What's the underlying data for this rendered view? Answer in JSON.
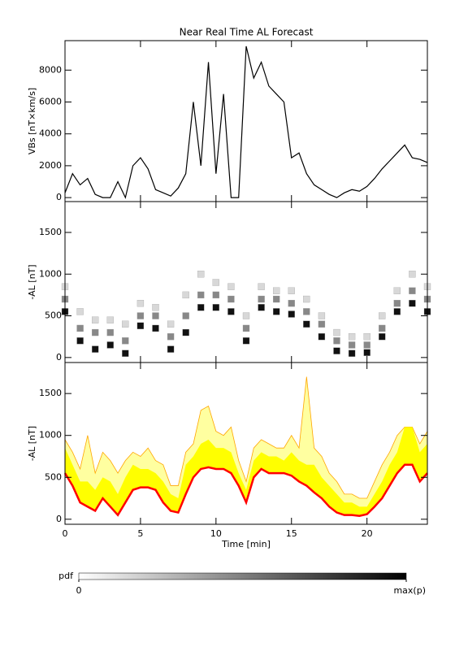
{
  "chart_data": [
    {
      "type": "line",
      "title": "Near Real Time AL Forecast",
      "ylabel": "VBs [nT×km/s]",
      "x": [
        0,
        0.5,
        1,
        1.5,
        2,
        2.5,
        3,
        3.5,
        4,
        4.5,
        5,
        5.5,
        6,
        6.5,
        7,
        7.5,
        8,
        8.5,
        9,
        9.5,
        10,
        10.5,
        11,
        11.5,
        12,
        12.5,
        13,
        13.5,
        14,
        14.5,
        15,
        15.5,
        16,
        16.5,
        17,
        17.5,
        18,
        18.5,
        19,
        19.5,
        20,
        20.5,
        21,
        21.5,
        22,
        22.5,
        23,
        23.5,
        24
      ],
      "series": [
        {
          "color": "#000000",
          "values": [
            300,
            1500,
            800,
            1200,
            200,
            0,
            0,
            1000,
            0,
            2000,
            2500,
            1800,
            500,
            300,
            100,
            600,
            1500,
            6000,
            2000,
            8500,
            1500,
            6500,
            0,
            0,
            9500,
            7500,
            8500,
            7000,
            6500,
            6000,
            2500,
            2800,
            1500,
            800,
            500,
            200,
            0,
            300,
            500,
            400,
            700,
            1200,
            1800,
            2300,
            2800,
            3300,
            2500,
            2400,
            2200
          ]
        }
      ],
      "xlim": [
        0,
        24
      ],
      "xticks": [
        0,
        5,
        10,
        15,
        20
      ],
      "ylim": [
        -250,
        9850
      ],
      "yticks": [
        0,
        2000,
        4000,
        6000,
        8000
      ]
    },
    {
      "type": "heatmap",
      "ylabel": "-AL [nT]",
      "x": [
        0,
        1,
        2,
        3,
        4,
        5,
        6,
        7,
        8,
        9,
        10,
        11,
        12,
        13,
        14,
        15,
        16,
        17,
        18,
        19,
        20,
        21,
        22,
        23,
        24
      ],
      "series": [
        {
          "color": "#d8d8d8",
          "values": [
            850,
            550,
            450,
            450,
            400,
            650,
            600,
            400,
            750,
            1000,
            900,
            850,
            500,
            850,
            800,
            800,
            700,
            500,
            300,
            250,
            250,
            500,
            800,
            1000,
            850
          ]
        },
        {
          "color": "#888888",
          "values": [
            700,
            350,
            300,
            300,
            200,
            500,
            500,
            250,
            500,
            750,
            750,
            700,
            350,
            700,
            700,
            650,
            550,
            400,
            200,
            150,
            150,
            350,
            650,
            800,
            700
          ]
        },
        {
          "color": "#111111",
          "values": [
            550,
            200,
            100,
            150,
            50,
            380,
            350,
            100,
            300,
            600,
            600,
            550,
            200,
            600,
            550,
            520,
            400,
            250,
            80,
            50,
            60,
            250,
            550,
            650,
            550
          ]
        }
      ],
      "xlim": [
        0,
        24
      ],
      "xticks": [
        0,
        5,
        10,
        15,
        20
      ],
      "ylim": [
        -60,
        1870
      ],
      "yticks": [
        0,
        500,
        1000,
        1500
      ],
      "colorbar": {
        "label": "pdf",
        "ticks": [
          0,
          {
            "value": 1,
            "label": "max(p)"
          }
        ],
        "colors": [
          "#ffffff",
          "#000000"
        ]
      }
    },
    {
      "type": "area",
      "ylabel": "-AL [nT]",
      "xlabel": "Time [min]",
      "x": [
        0,
        0.5,
        1,
        1.5,
        2,
        2.5,
        3,
        3.5,
        4,
        4.5,
        5,
        5.5,
        6,
        6.5,
        7,
        7.5,
        8,
        8.5,
        9,
        9.5,
        10,
        10.5,
        11,
        11.5,
        12,
        12.5,
        13,
        13.5,
        14,
        14.5,
        15,
        15.5,
        16,
        16.5,
        17,
        17.5,
        18,
        18.5,
        19,
        19.5,
        20,
        20.5,
        21,
        21.5,
        22,
        22.5,
        23,
        23.5,
        24
      ],
      "series": [
        {
          "color": "#ffffa0",
          "edge": "#ffa500",
          "values": [
            950,
            800,
            600,
            1000,
            550,
            800,
            700,
            550,
            700,
            800,
            750,
            850,
            700,
            650,
            400,
            400,
            800,
            900,
            1300,
            1350,
            1050,
            1000,
            1100,
            700,
            450,
            850,
            950,
            900,
            850,
            850,
            1000,
            850,
            1700,
            850,
            750,
            550,
            450,
            300,
            300,
            250,
            250,
            450,
            650,
            800,
            1000,
            1100,
            1100,
            900,
            1050
          ]
        },
        {
          "color": "#ffff00",
          "values": [
            850,
            650,
            450,
            450,
            350,
            500,
            450,
            300,
            500,
            650,
            600,
            600,
            550,
            450,
            300,
            250,
            650,
            750,
            900,
            950,
            850,
            850,
            800,
            550,
            350,
            700,
            800,
            750,
            750,
            700,
            800,
            700,
            650,
            650,
            500,
            400,
            300,
            200,
            200,
            150,
            150,
            300,
            450,
            650,
            800,
            1100,
            1100,
            800,
            900
          ]
        },
        {
          "color": "#ff0000",
          "values": [
            550,
            400,
            200,
            150,
            100,
            250,
            150,
            50,
            200,
            350,
            380,
            380,
            350,
            200,
            100,
            80,
            300,
            500,
            600,
            620,
            600,
            600,
            550,
            400,
            200,
            500,
            600,
            550,
            550,
            550,
            520,
            450,
            400,
            320,
            250,
            150,
            80,
            50,
            50,
            40,
            60,
            150,
            250,
            400,
            550,
            650,
            650,
            450,
            550
          ]
        }
      ],
      "xlim": [
        0,
        24
      ],
      "xticks": [
        0,
        5,
        10,
        15,
        20
      ],
      "ylim": [
        -60,
        1870
      ],
      "yticks": [
        0,
        500,
        1000,
        1500
      ]
    }
  ]
}
